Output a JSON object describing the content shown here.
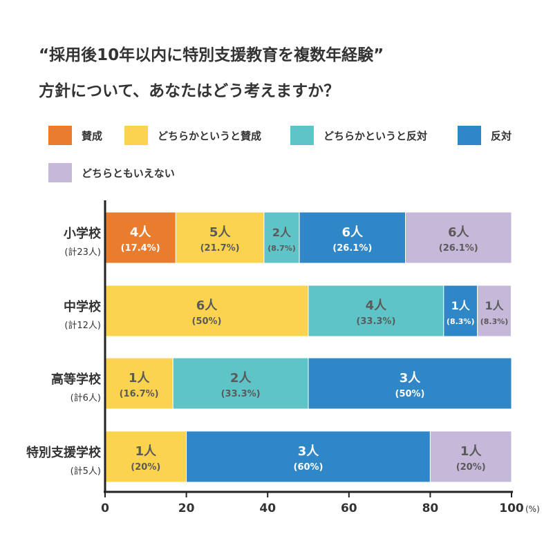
{
  "title": {
    "line1": "“採用後10年以内に特別支援教育を複数年経験”",
    "line2": "方針について、あなたはどう考えますか？"
  },
  "chart_data": {
    "type": "bar",
    "orientation": "horizontal-stacked",
    "unit": "(%)",
    "xlim": [
      0,
      100
    ],
    "xticks": [
      0,
      20,
      40,
      60,
      80,
      100
    ],
    "grid": false,
    "legend_position": "top",
    "legend": [
      {
        "name": "賛成",
        "color": "#EA7D2D"
      },
      {
        "name": "どちらかというと賛成",
        "color": "#FCD34E"
      },
      {
        "name": "どちらかというと反対",
        "color": "#5EC4C7"
      },
      {
        "name": "反対",
        "color": "#2F87C7"
      },
      {
        "name": "どちらともいえない",
        "color": "#C5B8D8"
      }
    ],
    "categories": [
      {
        "name": "小学校",
        "total": "(計23人)"
      },
      {
        "name": "中学校",
        "total": "(計12人)"
      },
      {
        "name": "高等学校",
        "total": "(計6人)"
      },
      {
        "name": "特別支援学校",
        "total": "(計5人)"
      }
    ],
    "rows": [
      [
        {
          "series": 0,
          "value": 17.4,
          "count": "4人",
          "pct": "(17.4%)"
        },
        {
          "series": 1,
          "value": 21.7,
          "count": "5人",
          "pct": "(21.7%)"
        },
        {
          "series": 2,
          "value": 8.7,
          "count": "2人",
          "pct": "(8.7%)"
        },
        {
          "series": 3,
          "value": 26.1,
          "count": "6人",
          "pct": "(26.1%)"
        },
        {
          "series": 4,
          "value": 26.1,
          "count": "6人",
          "pct": "(26.1%)"
        }
      ],
      [
        {
          "series": 1,
          "value": 50,
          "count": "6人",
          "pct": "(50%)"
        },
        {
          "series": 2,
          "value": 33.3,
          "count": "4人",
          "pct": "(33.3%)"
        },
        {
          "series": 3,
          "value": 8.3,
          "count": "1人",
          "pct": "(8.3%)"
        },
        {
          "series": 4,
          "value": 8.3,
          "count": "1人",
          "pct": "(8.3%)"
        }
      ],
      [
        {
          "series": 1,
          "value": 16.7,
          "count": "1人",
          "pct": "(16.7%)"
        },
        {
          "series": 2,
          "value": 33.3,
          "count": "2人",
          "pct": "(33.3%)"
        },
        {
          "series": 3,
          "value": 50,
          "count": "3人",
          "pct": "(50%)"
        }
      ],
      [
        {
          "series": 1,
          "value": 20,
          "count": "1人",
          "pct": "(20%)"
        },
        {
          "series": 3,
          "value": 60,
          "count": "3人",
          "pct": "(60%)"
        },
        {
          "series": 4,
          "value": 20,
          "count": "1人",
          "pct": "(20%)"
        }
      ]
    ]
  }
}
